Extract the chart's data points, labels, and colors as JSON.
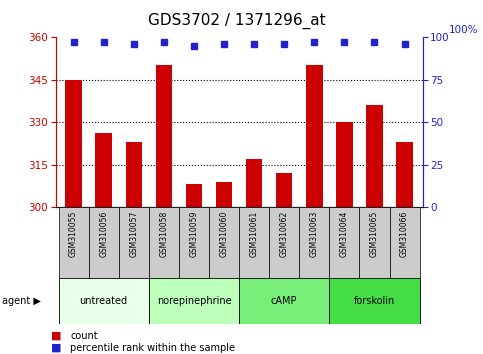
{
  "title": "GDS3702 / 1371296_at",
  "samples": [
    "GSM310055",
    "GSM310056",
    "GSM310057",
    "GSM310058",
    "GSM310059",
    "GSM310060",
    "GSM310061",
    "GSM310062",
    "GSM310063",
    "GSM310064",
    "GSM310065",
    "GSM310066"
  ],
  "counts": [
    345,
    326,
    323,
    350,
    308,
    309,
    317,
    312,
    350,
    330,
    336,
    323
  ],
  "percentile_ranks": [
    97,
    97,
    96,
    97,
    95,
    96,
    96,
    96,
    97,
    97,
    97,
    96
  ],
  "ylim_left": [
    300,
    360
  ],
  "ylim_right": [
    0,
    100
  ],
  "yticks_left": [
    300,
    315,
    330,
    345,
    360
  ],
  "yticks_right": [
    0,
    25,
    50,
    75,
    100
  ],
  "bar_color": "#cc0000",
  "dot_color": "#2222cc",
  "bar_width": 0.55,
  "agents": [
    {
      "label": "untreated",
      "start": 0,
      "end": 3,
      "color": "#e8ffe8"
    },
    {
      "label": "norepinephrine",
      "start": 3,
      "end": 6,
      "color": "#bbffbb"
    },
    {
      "label": "cAMP",
      "start": 6,
      "end": 9,
      "color": "#77ee77"
    },
    {
      "label": "forskolin",
      "start": 9,
      "end": 12,
      "color": "#44dd44"
    }
  ],
  "agent_label": "agent",
  "legend_count_label": "count",
  "legend_pct_label": "percentile rank within the sample",
  "title_fontsize": 11,
  "axis_label_color_left": "#cc0000",
  "axis_label_color_right": "#2222cc",
  "sample_bg_color": "#cccccc",
  "hgrid_lines": [
    315,
    330,
    345
  ]
}
